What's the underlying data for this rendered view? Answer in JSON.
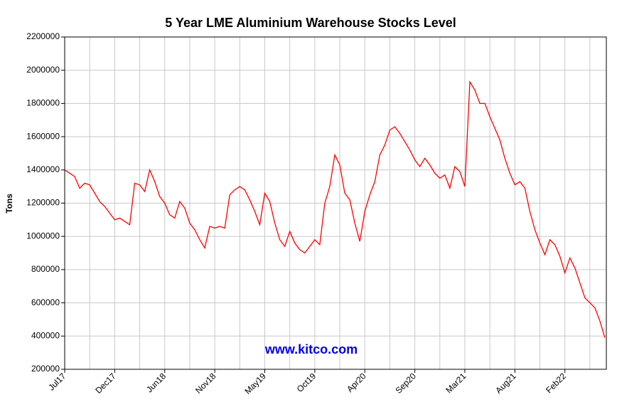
{
  "chart_data": {
    "type": "line",
    "title": "5 Year LME Aluminium Warehouse Stocks Level",
    "y_label": "Tons",
    "annotation": "www.kitco.com",
    "categories": [
      "Jul17",
      null,
      null,
      null,
      null,
      null,
      null,
      null,
      null,
      null,
      "Dec17",
      null,
      null,
      null,
      null,
      null,
      null,
      null,
      null,
      null,
      "Jun18",
      null,
      null,
      null,
      null,
      null,
      null,
      null,
      null,
      null,
      "Nov18",
      null,
      null,
      null,
      null,
      null,
      null,
      null,
      null,
      null,
      "May19",
      null,
      null,
      null,
      null,
      null,
      null,
      null,
      null,
      null,
      "Oct19",
      null,
      null,
      null,
      null,
      null,
      null,
      null,
      null,
      null,
      "Apr20",
      null,
      null,
      null,
      null,
      null,
      null,
      null,
      null,
      null,
      "Sep20",
      null,
      null,
      null,
      null,
      null,
      null,
      null,
      null,
      null,
      "Mar21",
      null,
      null,
      null,
      null,
      null,
      null,
      null,
      null,
      null,
      "Aug21",
      null,
      null,
      null,
      null,
      null,
      null,
      null,
      null,
      null,
      "Feb22",
      null,
      null,
      null,
      null,
      null,
      null,
      null,
      null
    ],
    "values": [
      1400000,
      1380000,
      1360000,
      1290000,
      1320000,
      1310000,
      1260000,
      1210000,
      1180000,
      1140000,
      1100000,
      1110000,
      1090000,
      1070000,
      1320000,
      1310000,
      1270000,
      1400000,
      1330000,
      1240000,
      1200000,
      1130000,
      1110000,
      1210000,
      1170000,
      1080000,
      1040000,
      980000,
      930000,
      1060000,
      1050000,
      1060000,
      1050000,
      1250000,
      1280000,
      1300000,
      1280000,
      1220000,
      1150000,
      1070000,
      1260000,
      1210000,
      1080000,
      980000,
      940000,
      1030000,
      960000,
      920000,
      900000,
      940000,
      980000,
      950000,
      1200000,
      1300000,
      1490000,
      1430000,
      1260000,
      1220000,
      1080000,
      970000,
      1150000,
      1250000,
      1330000,
      1490000,
      1550000,
      1640000,
      1660000,
      1620000,
      1570000,
      1520000,
      1460000,
      1420000,
      1470000,
      1430000,
      1380000,
      1350000,
      1370000,
      1290000,
      1420000,
      1390000,
      1300000,
      1930000,
      1880000,
      1800000,
      1800000,
      1720000,
      1650000,
      1580000,
      1470000,
      1380000,
      1310000,
      1330000,
      1290000,
      1150000,
      1040000,
      960000,
      890000,
      980000,
      950000,
      880000,
      780000,
      870000,
      810000,
      720000,
      630000,
      600000,
      570000,
      490000,
      390000
    ],
    "color": "#ff0000",
    "ylim": [
      200000,
      2200000
    ],
    "yticks": [
      200000,
      400000,
      600000,
      800000,
      1000000,
      1200000,
      1400000,
      1600000,
      1800000,
      2000000,
      2200000
    ],
    "grid": true
  }
}
